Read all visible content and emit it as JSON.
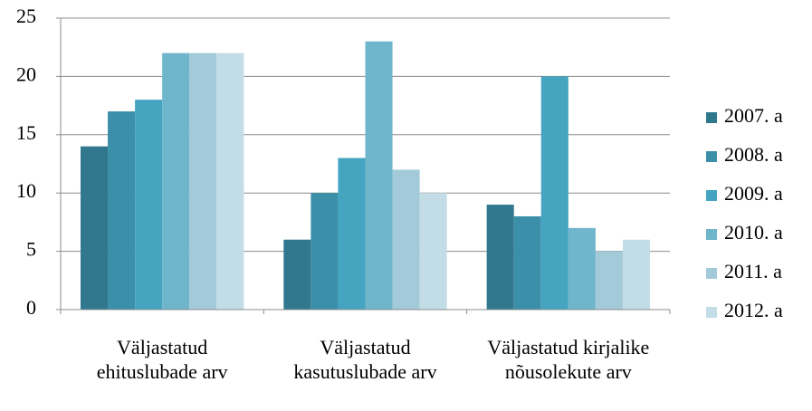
{
  "chart_data": {
    "type": "bar",
    "categories": [
      "Väljastatud ehituslubade arv",
      "Väljastatud kasutuslubade arv",
      "Väljastatud kirjalike nõusolekute arv"
    ],
    "series": [
      {
        "name": "2007. a",
        "color": "#31788f",
        "values": [
          14,
          6,
          9
        ]
      },
      {
        "name": "2008. a",
        "color": "#3b8fa8",
        "values": [
          17,
          10,
          8
        ]
      },
      {
        "name": "2009. a",
        "color": "#45a5c0",
        "values": [
          18,
          13,
          20
        ]
      },
      {
        "name": "2010. a",
        "color": "#6fb5cc",
        "values": [
          22,
          23,
          7
        ]
      },
      {
        "name": "2011. a",
        "color": "#a2cad9",
        "values": [
          22,
          12,
          5
        ]
      },
      {
        "name": "2012. a",
        "color": "#c3dde6",
        "values": [
          22,
          10,
          6
        ]
      }
    ],
    "ylim": [
      0,
      25
    ],
    "yticks": [
      0,
      5,
      10,
      15,
      20,
      25
    ],
    "grid": true,
    "legend": "right"
  }
}
